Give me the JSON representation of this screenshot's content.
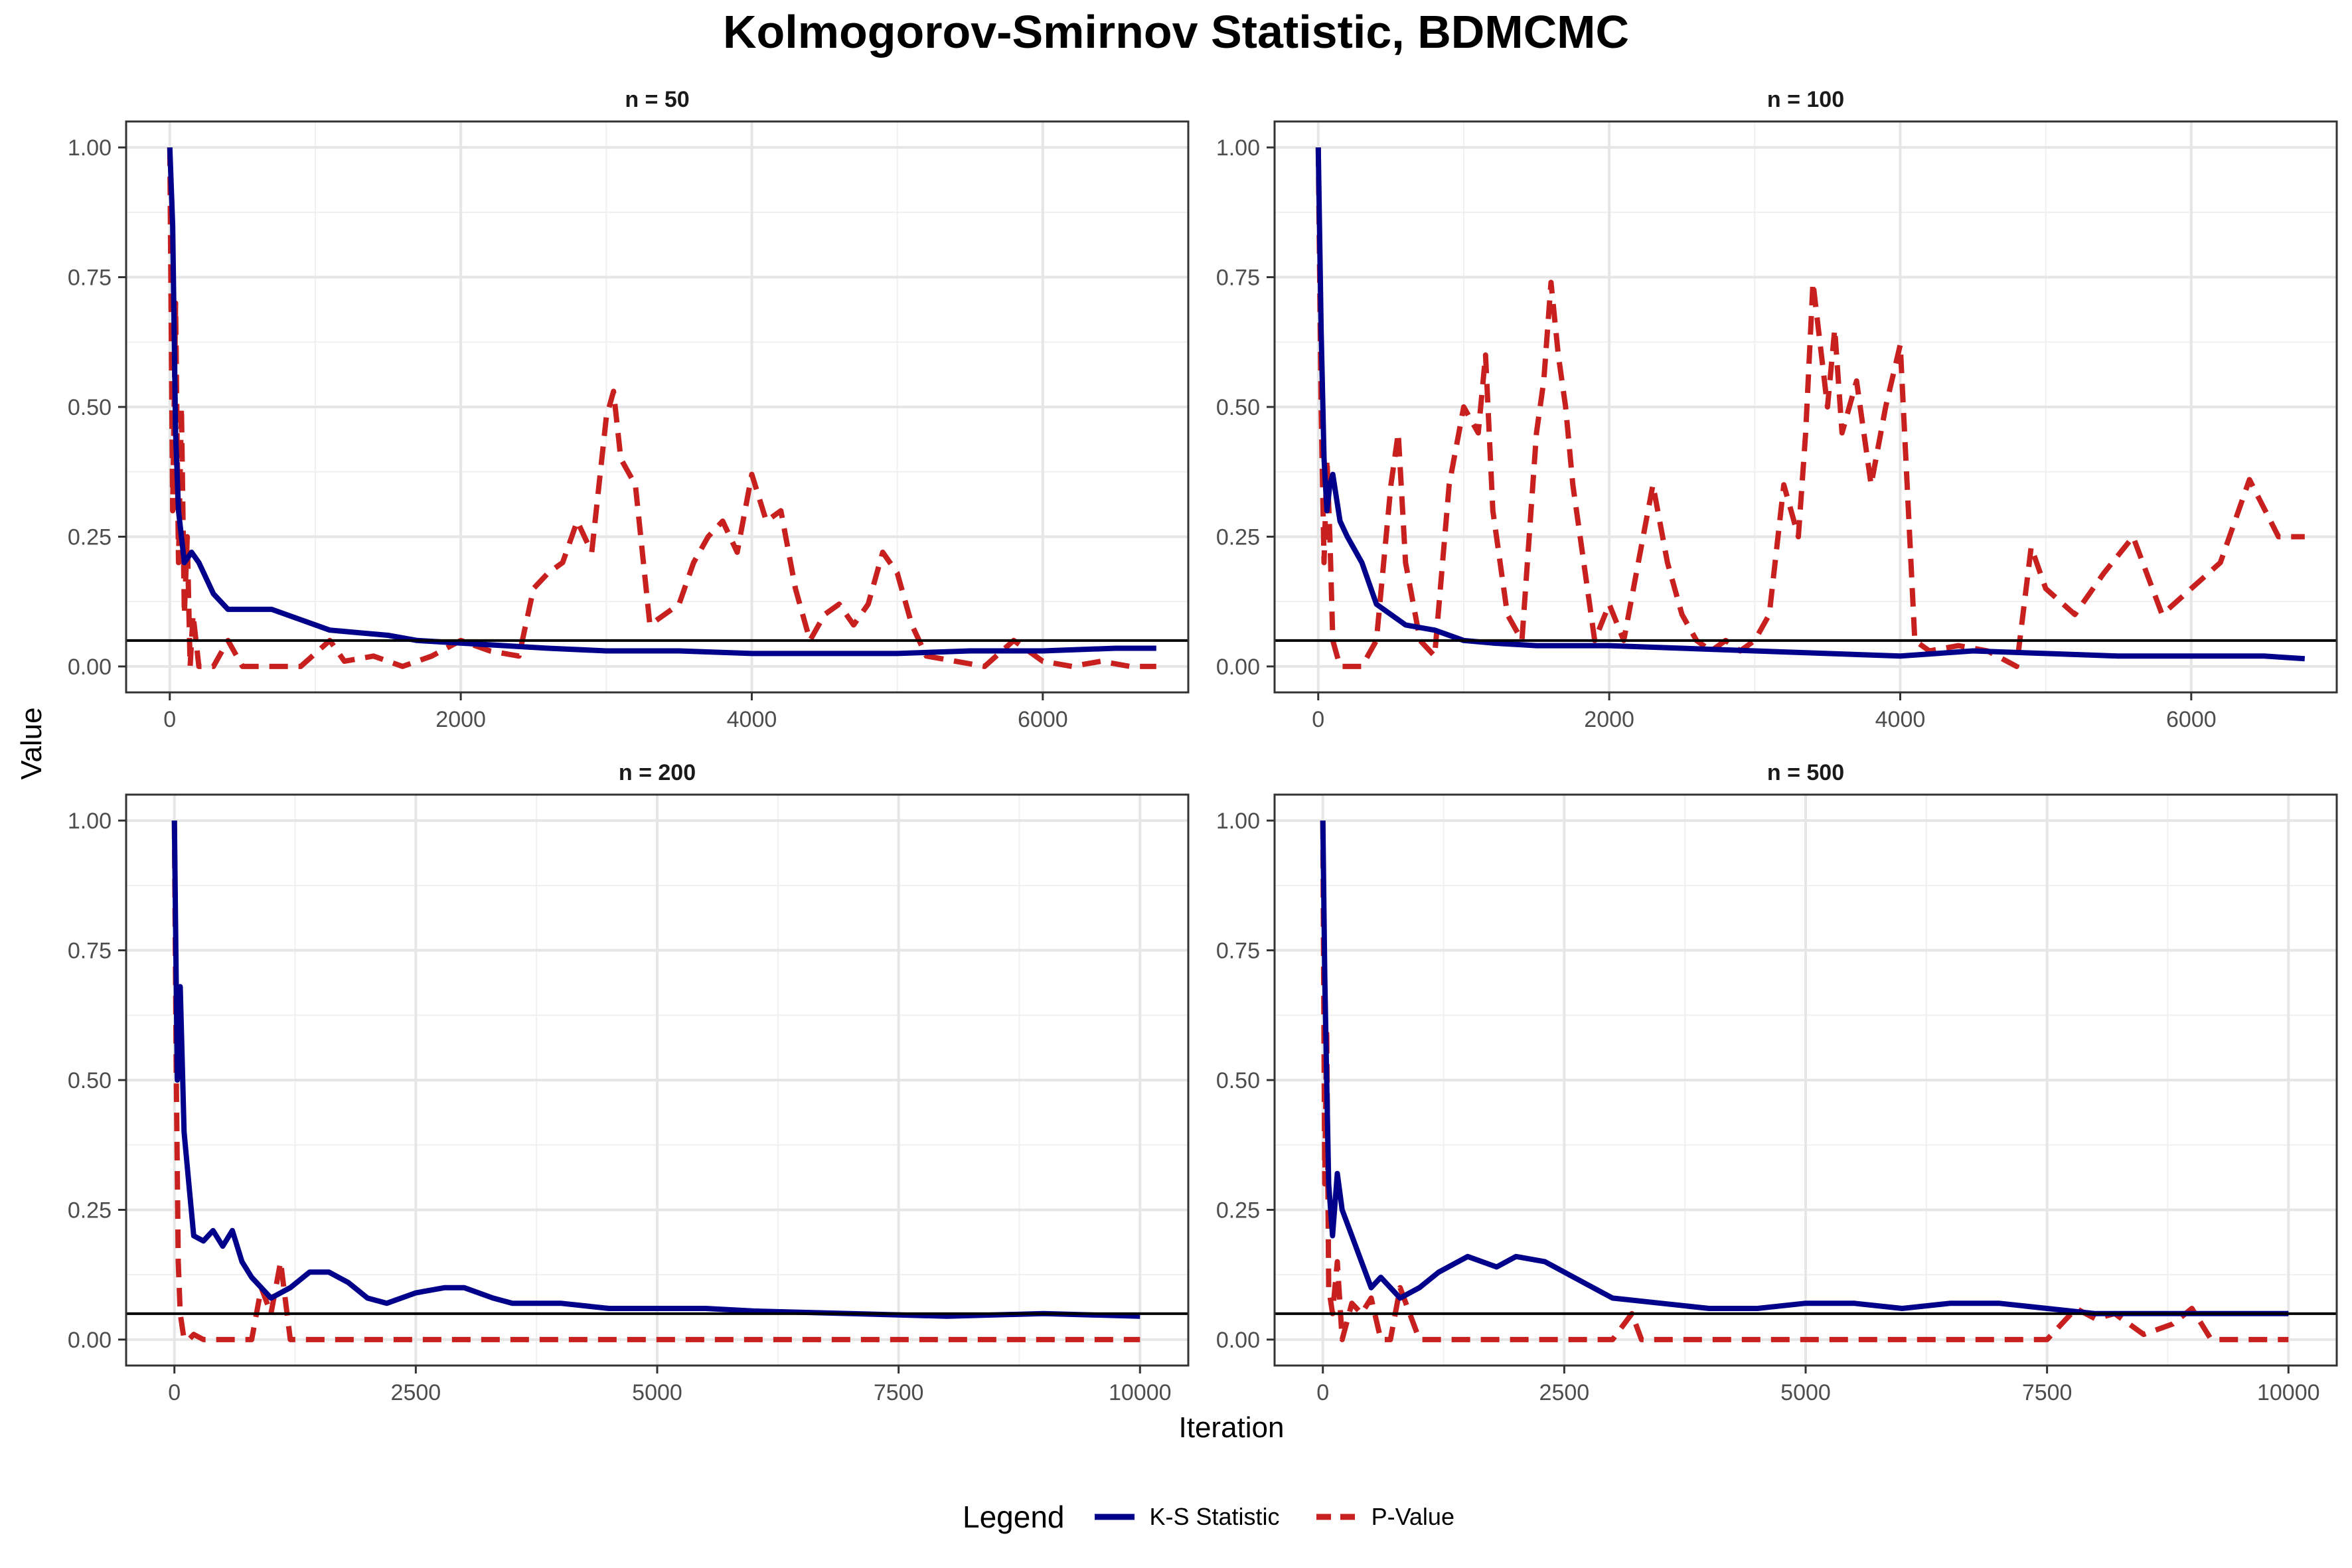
{
  "title": "Kolmogorov-Smirnov Statistic, BDMCMC",
  "x_label": "Iteration",
  "y_label": "Value",
  "legend": {
    "title": "Legend",
    "items": [
      {
        "label": "K-S Statistic",
        "color": "#00008B",
        "linestyle": "solid"
      },
      {
        "label": "P-Value",
        "color": "#C8201E",
        "linestyle": "dashed"
      }
    ]
  },
  "reference_line": {
    "y": 0.05,
    "color": "#000000"
  },
  "chart_data": [
    {
      "type": "line",
      "facet": "n = 50",
      "xlim": [
        -300,
        7000
      ],
      "ylim": [
        -0.05,
        1.05
      ],
      "x_ticks": [
        0,
        2000,
        4000,
        6000
      ],
      "x_tick_labels": [
        "0",
        "2000",
        "4000",
        "6000"
      ],
      "y_ticks": [
        0,
        0.25,
        0.5,
        0.75,
        1
      ],
      "y_tick_labels": [
        "0.00",
        "0.25",
        "0.50",
        "0.75",
        "1.00"
      ],
      "grid": true,
      "series": [
        {
          "name": "K-S Statistic",
          "x": [
            0,
            20,
            40,
            60,
            100,
            150,
            200,
            300,
            400,
            500,
            700,
            900,
            1100,
            1300,
            1500,
            1700,
            2000,
            2300,
            2600,
            3000,
            3500,
            4000,
            4500,
            5000,
            5500,
            6000,
            6500,
            6780
          ],
          "y": [
            1.0,
            0.85,
            0.45,
            0.3,
            0.2,
            0.22,
            0.2,
            0.14,
            0.11,
            0.11,
            0.11,
            0.09,
            0.07,
            0.065,
            0.06,
            0.05,
            0.045,
            0.04,
            0.035,
            0.03,
            0.03,
            0.025,
            0.025,
            0.025,
            0.03,
            0.03,
            0.035,
            0.035
          ]
        },
        {
          "name": "P-Value",
          "x": [
            0,
            20,
            40,
            60,
            80,
            100,
            120,
            140,
            160,
            200,
            300,
            400,
            500,
            700,
            900,
            1100,
            1200,
            1400,
            1600,
            1800,
            2000,
            2200,
            2400,
            2500,
            2600,
            2700,
            2800,
            2900,
            3000,
            3050,
            3100,
            3200,
            3300,
            3400,
            3500,
            3600,
            3700,
            3800,
            3900,
            4000,
            4100,
            4200,
            4300,
            4400,
            4500,
            4600,
            4700,
            4800,
            4900,
            5000,
            5100,
            5200,
            5400,
            5600,
            5800,
            6000,
            6200,
            6400,
            6600,
            6780
          ],
          "y": [
            1.0,
            0.3,
            0.7,
            0.2,
            0.5,
            0.1,
            0.25,
            0.0,
            0.1,
            0.0,
            0.0,
            0.05,
            0.0,
            0.0,
            0.0,
            0.05,
            0.01,
            0.02,
            0.0,
            0.02,
            0.05,
            0.03,
            0.02,
            0.15,
            0.18,
            0.2,
            0.28,
            0.22,
            0.48,
            0.53,
            0.4,
            0.35,
            0.08,
            0.1,
            0.12,
            0.2,
            0.25,
            0.28,
            0.22,
            0.37,
            0.28,
            0.3,
            0.15,
            0.05,
            0.1,
            0.12,
            0.08,
            0.12,
            0.22,
            0.18,
            0.08,
            0.02,
            0.01,
            0.0,
            0.05,
            0.01,
            0.0,
            0.01,
            0.0,
            0.0
          ]
        }
      ]
    },
    {
      "type": "line",
      "facet": "n = 100",
      "xlim": [
        -300,
        7000
      ],
      "ylim": [
        -0.05,
        1.05
      ],
      "x_ticks": [
        0,
        2000,
        4000,
        6000
      ],
      "x_tick_labels": [
        "0",
        "2000",
        "4000",
        "6000"
      ],
      "y_ticks": [
        0,
        0.25,
        0.5,
        0.75,
        1
      ],
      "y_tick_labels": [
        "0.00",
        "0.25",
        "0.50",
        "0.75",
        "1.00"
      ],
      "grid": true,
      "series": [
        {
          "name": "K-S Statistic",
          "x": [
            0,
            20,
            40,
            60,
            80,
            100,
            150,
            200,
            300,
            400,
            500,
            600,
            800,
            1000,
            1200,
            1500,
            2000,
            2500,
            3000,
            3500,
            4000,
            4500,
            5000,
            5500,
            6000,
            6500,
            6780
          ],
          "y": [
            1.0,
            0.65,
            0.4,
            0.3,
            0.35,
            0.37,
            0.28,
            0.25,
            0.2,
            0.12,
            0.1,
            0.08,
            0.07,
            0.05,
            0.045,
            0.04,
            0.04,
            0.035,
            0.03,
            0.025,
            0.02,
            0.03,
            0.025,
            0.02,
            0.02,
            0.02,
            0.015
          ]
        },
        {
          "name": "P-Value",
          "x": [
            0,
            20,
            40,
            60,
            80,
            100,
            150,
            200,
            300,
            400,
            500,
            550,
            600,
            700,
            800,
            900,
            1000,
            1100,
            1150,
            1200,
            1300,
            1400,
            1500,
            1550,
            1600,
            1650,
            1700,
            1750,
            1800,
            1900,
            2000,
            2100,
            2200,
            2300,
            2400,
            2500,
            2600,
            2700,
            2800,
            2900,
            3000,
            3100,
            3200,
            3300,
            3350,
            3400,
            3500,
            3550,
            3600,
            3700,
            3800,
            3900,
            4000,
            4100,
            4200,
            4400,
            4600,
            4800,
            4900,
            5000,
            5200,
            5400,
            5600,
            5800,
            6000,
            6200,
            6400,
            6600,
            6780
          ],
          "y": [
            1.0,
            0.5,
            0.2,
            0.4,
            0.25,
            0.05,
            0.0,
            0.0,
            0.0,
            0.05,
            0.35,
            0.45,
            0.2,
            0.05,
            0.02,
            0.35,
            0.5,
            0.45,
            0.6,
            0.3,
            0.1,
            0.05,
            0.45,
            0.55,
            0.74,
            0.6,
            0.5,
            0.35,
            0.25,
            0.05,
            0.12,
            0.05,
            0.2,
            0.35,
            0.2,
            0.1,
            0.05,
            0.03,
            0.05,
            0.03,
            0.05,
            0.1,
            0.35,
            0.25,
            0.45,
            0.74,
            0.5,
            0.65,
            0.45,
            0.55,
            0.35,
            0.5,
            0.62,
            0.05,
            0.03,
            0.04,
            0.03,
            0.0,
            0.23,
            0.15,
            0.1,
            0.18,
            0.25,
            0.1,
            0.15,
            0.2,
            0.36,
            0.25,
            0.25
          ]
        }
      ]
    },
    {
      "type": "line",
      "facet": "n = 200",
      "xlim": [
        -500,
        10500
      ],
      "ylim": [
        -0.05,
        1.05
      ],
      "x_ticks": [
        0,
        2500,
        5000,
        7500,
        10000
      ],
      "x_tick_labels": [
        "0",
        "2500",
        "5000",
        "7500",
        "10000"
      ],
      "y_ticks": [
        0,
        0.25,
        0.5,
        0.75,
        1
      ],
      "y_tick_labels": [
        "0.00",
        "0.25",
        "0.50",
        "0.75",
        "1.00"
      ],
      "grid": true,
      "series": [
        {
          "name": "K-S Statistic",
          "x": [
            0,
            30,
            60,
            100,
            150,
            200,
            300,
            400,
            500,
            600,
            700,
            800,
            900,
            1000,
            1200,
            1400,
            1600,
            1800,
            2000,
            2200,
            2500,
            2800,
            3000,
            3300,
            3500,
            4000,
            4500,
            5000,
            5500,
            6000,
            7000,
            8000,
            9000,
            10000
          ],
          "y": [
            1.0,
            0.5,
            0.68,
            0.4,
            0.3,
            0.2,
            0.19,
            0.21,
            0.18,
            0.21,
            0.15,
            0.12,
            0.1,
            0.08,
            0.1,
            0.13,
            0.13,
            0.11,
            0.08,
            0.07,
            0.09,
            0.1,
            0.1,
            0.08,
            0.07,
            0.07,
            0.06,
            0.06,
            0.06,
            0.055,
            0.05,
            0.045,
            0.05,
            0.045
          ]
        },
        {
          "name": "P-Value",
          "x": [
            0,
            20,
            40,
            60,
            100,
            150,
            200,
            300,
            500,
            700,
            800,
            900,
            1000,
            1100,
            1200,
            1500,
            2000,
            3000,
            5000,
            7500,
            10000
          ],
          "y": [
            1.0,
            0.5,
            0.15,
            0.05,
            0.0,
            0.0,
            0.01,
            0.0,
            0.0,
            0.0,
            0.0,
            0.1,
            0.05,
            0.15,
            0.0,
            0.0,
            0.0,
            0.0,
            0.0,
            0.0,
            0.0
          ]
        }
      ]
    },
    {
      "type": "line",
      "facet": "n = 500",
      "xlim": [
        -500,
        10500
      ],
      "ylim": [
        -0.05,
        1.05
      ],
      "x_ticks": [
        0,
        2500,
        5000,
        7500,
        10000
      ],
      "x_tick_labels": [
        "0",
        "2500",
        "5000",
        "7500",
        "10000"
      ],
      "y_ticks": [
        0,
        0.25,
        0.5,
        0.75,
        1
      ],
      "y_tick_labels": [
        "0.00",
        "0.25",
        "0.50",
        "0.75",
        "1.00"
      ],
      "grid": true,
      "series": [
        {
          "name": "K-S Statistic",
          "x": [
            0,
            20,
            40,
            60,
            100,
            150,
            200,
            300,
            400,
            500,
            600,
            800,
            1000,
            1200,
            1500,
            1800,
            2000,
            2300,
            2600,
            3000,
            3500,
            4000,
            4500,
            5000,
            5500,
            6000,
            6500,
            7000,
            7500,
            8000,
            8500,
            9000,
            9500,
            10000
          ],
          "y": [
            1.0,
            0.7,
            0.5,
            0.3,
            0.2,
            0.32,
            0.25,
            0.2,
            0.15,
            0.1,
            0.12,
            0.08,
            0.1,
            0.13,
            0.16,
            0.14,
            0.16,
            0.15,
            0.12,
            0.08,
            0.07,
            0.06,
            0.06,
            0.07,
            0.07,
            0.06,
            0.07,
            0.07,
            0.06,
            0.05,
            0.05,
            0.05,
            0.05,
            0.05
          ]
        },
        {
          "name": "P-Value",
          "x": [
            0,
            20,
            40,
            60,
            100,
            150,
            200,
            300,
            400,
            500,
            600,
            700,
            800,
            900,
            1000,
            1500,
            2000,
            3000,
            3200,
            3300,
            3500,
            5000,
            7500,
            7800,
            8000,
            8200,
            8500,
            8800,
            9000,
            9200,
            10000
          ],
          "y": [
            1.0,
            0.3,
            0.6,
            0.1,
            0.05,
            0.15,
            0.0,
            0.07,
            0.05,
            0.08,
            0.0,
            0.0,
            0.1,
            0.05,
            0.0,
            0.0,
            0.0,
            0.0,
            0.05,
            0.0,
            0.0,
            0.0,
            0.0,
            0.06,
            0.04,
            0.05,
            0.01,
            0.03,
            0.06,
            0.0,
            0.0
          ]
        }
      ]
    }
  ]
}
